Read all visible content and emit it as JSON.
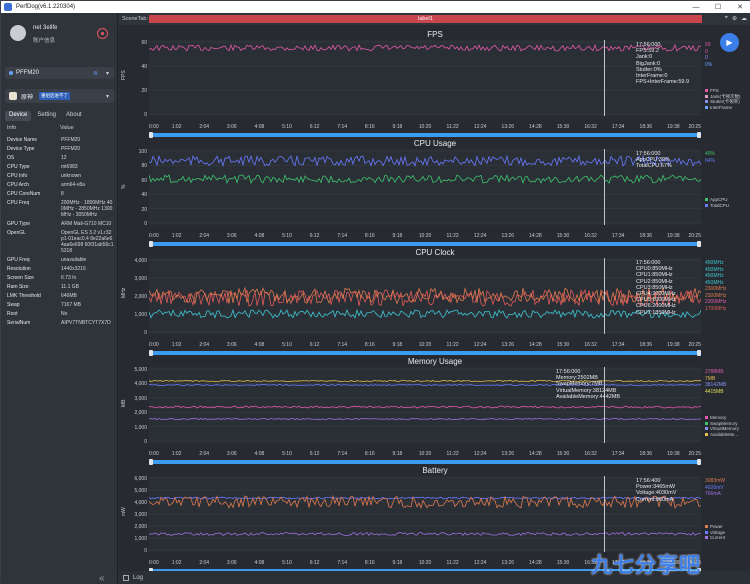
{
  "window": {
    "title": "PerfDog(v6.1.220304)"
  },
  "user": {
    "name": "net 3elife",
    "info": "账户信息"
  },
  "device": {
    "name": "PFFM20"
  },
  "app": {
    "name": "原神",
    "tag": "重组后进不了"
  },
  "tabs": [
    "Device",
    "Setting",
    "About"
  ],
  "info_header": {
    "key": "Info",
    "value": "Value"
  },
  "info_rows": [
    {
      "k": "Device Name",
      "v": "PFFM20"
    },
    {
      "k": "Device Type",
      "v": "PFFM20"
    },
    {
      "k": "OS",
      "v": "12"
    },
    {
      "k": "CPU Type",
      "v": "mt6983"
    },
    {
      "k": "CPU Info",
      "v": "unknown"
    },
    {
      "k": "CPU Arch",
      "v": "arm64-v8a"
    },
    {
      "k": "CPU CoreNum",
      "v": "8"
    },
    {
      "k": "CPU Freq",
      "v": "200MHz - 1800MHz 400MHz - 2850MHz 1300MHz - 3050MHz"
    },
    {
      "k": "GPU Type",
      "v": "ARM Mali-G710 MC10"
    },
    {
      "k": "OpenGL",
      "v": "OpenGL ES 3.2 v1.r32p1-01eac0.4 8e22a6e64aa6e698 60f31ab56c15318"
    },
    {
      "k": "GPU Freq",
      "v": "unavailable"
    },
    {
      "k": "Resolution",
      "v": "1440x3216"
    },
    {
      "k": "Screen Size",
      "v": "6.73 In"
    },
    {
      "k": "Ram Size",
      "v": "11.1 GB"
    },
    {
      "k": "LMK Threshold",
      "v": "646MB"
    },
    {
      "k": "Swap",
      "v": "7167 MB"
    },
    {
      "k": "Root",
      "v": "No"
    },
    {
      "k": "SerialNum",
      "v": "AIPV7TNBTCYT7X7D"
    }
  ],
  "scene": {
    "label": "SceneTab:",
    "track": "label1"
  },
  "x_ticks": [
    "0:00",
    "1:02",
    "2:04",
    "3:06",
    "4:08",
    "5:10",
    "6:12",
    "7:14",
    "8:16",
    "9:18",
    "10:20",
    "11:22",
    "12:24",
    "13:26",
    "14:28",
    "15:30",
    "16:32",
    "17:34",
    "18:36",
    "19:38",
    "20:25"
  ],
  "panels": [
    {
      "title": "FPS",
      "yname": "FPS",
      "yticks": [
        "60",
        "40",
        "20",
        "0"
      ],
      "tooltip": [
        "17:56:000",
        "FPS:59.2",
        "Jank:0",
        "BigJank:0",
        "Stutter:0%",
        "InterFrame:0",
        "FPS+InterFrame:59.9"
      ],
      "values": [
        {
          "t": "59",
          "c": "#e05aa8"
        },
        {
          "t": "0",
          "c": "#e05aa8"
        },
        {
          "t": "0",
          "c": "#8a8ff0"
        },
        {
          "t": "0%",
          "c": "#6aa2ff"
        }
      ],
      "legend": [
        {
          "n": "FPS",
          "c": "#e05aa8"
        },
        {
          "n": "Jank(卡顿次数)",
          "c": "#e0a0c8"
        },
        {
          "n": "Stutter(卡顿率)",
          "c": "#8a8ff0"
        },
        {
          "n": "InterFrame",
          "c": "#6aa2ff"
        }
      ]
    },
    {
      "title": "CPU Usage",
      "yname": "%",
      "yticks": [
        "100",
        "80",
        "60",
        "40",
        "20",
        "0"
      ],
      "tooltip": [
        "17:56:000",
        "AppCPU:39%",
        "TotalCPU:67%"
      ],
      "values": [
        {
          "t": "40%",
          "c": "#3ec46d"
        },
        {
          "t": "64%",
          "c": "#6a7bff"
        }
      ],
      "legend": [
        {
          "n": "AppCPU",
          "c": "#3ec46d"
        },
        {
          "n": "TotalCPU",
          "c": "#6a7bff"
        }
      ]
    },
    {
      "title": "CPU Clock",
      "yname": "MHz",
      "yticks": [
        "4,000",
        "3,000",
        "2,000",
        "1,000",
        "0"
      ],
      "tooltip": [
        "17:56:000",
        "CPU0:850MHz",
        "CPU1:850MHz",
        "CPU2:850MHz",
        "CPU3:850MHz",
        "CPU4:2000MHz",
        "CPU5:2000MHz",
        "CPU6:2000MHz",
        "CPU7:1850MHz"
      ],
      "values": [
        {
          "t": "450MHz",
          "c": "#3ec4d0"
        },
        {
          "t": "450MHz",
          "c": "#3ec4d0"
        },
        {
          "t": "450MHz",
          "c": "#3ec4d0"
        },
        {
          "t": "450MHz",
          "c": "#3ec4d0"
        },
        {
          "t": "2300MHz",
          "c": "#e07a50"
        },
        {
          "t": "2300MHz",
          "c": "#e07a50"
        },
        {
          "t": "2300MHz",
          "c": "#e05aa8"
        },
        {
          "t": "1700MHz",
          "c": "#e05a5a"
        }
      ],
      "legend": []
    },
    {
      "title": "Memory Usage",
      "yname": "MB",
      "yticks": [
        "5,000",
        "4,000",
        "3,000",
        "2,000",
        "1,000",
        "0"
      ],
      "tooltip": [
        "17:56:000",
        "Memory:2502MB",
        "SwapMemory:7MB",
        "VirtualMemory:38124MB",
        "AvailableMemory:4442MB"
      ],
      "values": [
        {
          "t": "2788MB",
          "c": "#e05aa8"
        },
        {
          "t": "7MB",
          "c": "#e0c050"
        },
        {
          "t": "38142MB",
          "c": "#8a8ff0"
        },
        {
          "t": "4415MB",
          "c": "#e0e050"
        }
      ],
      "legend": [
        {
          "n": "Memory",
          "c": "#e05aa8"
        },
        {
          "n": "SwapMemory",
          "c": "#3ec46d"
        },
        {
          "n": "VirtualMemory",
          "c": "#8a8ff0"
        },
        {
          "n": "AvailableMe...",
          "c": "#e0c050"
        }
      ]
    },
    {
      "title": "Battery",
      "yname": "mW",
      "yticks": [
        "6,000",
        "5,000",
        "4,000",
        "3,000",
        "2,000",
        "1,000",
        "0"
      ],
      "tooltip": [
        "17:56:400",
        "Power:3465mW",
        "Voltage:4030mV",
        "Current:860mA"
      ],
      "values": [
        {
          "t": "3083mW",
          "c": "#e07a50"
        },
        {
          "t": "4026mV",
          "c": "#6a7bff"
        },
        {
          "t": "766mA",
          "c": "#a070e0"
        }
      ],
      "legend": [
        {
          "n": "Power",
          "c": "#e07a50"
        },
        {
          "n": "Voltage",
          "c": "#6a7bff"
        },
        {
          "n": "Current",
          "c": "#a070e0"
        }
      ]
    }
  ],
  "log": {
    "label": "Log"
  },
  "watermark": "九七分享吧"
}
